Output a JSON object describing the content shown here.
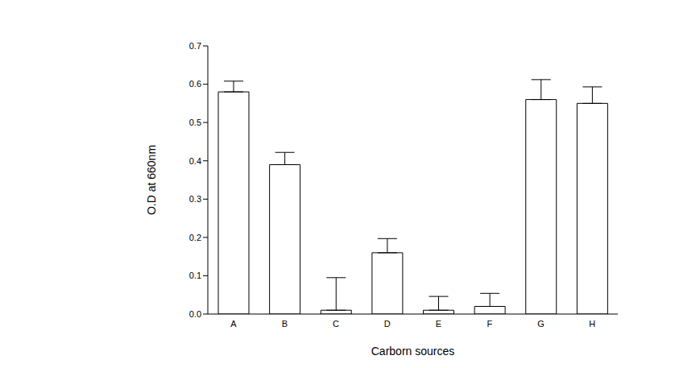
{
  "chart_data": {
    "type": "bar",
    "x_label": "Carborn sources",
    "y_label": "O.D at 660nm",
    "categories": [
      "A",
      "B",
      "C",
      "D",
      "E",
      "F",
      "G",
      "H"
    ],
    "values": [
      0.58,
      0.39,
      0.01,
      0.16,
      0.01,
      0.02,
      0.56,
      0.55
    ],
    "errors": [
      0.028,
      0.032,
      0.085,
      0.037,
      0.036,
      0.034,
      0.052,
      0.043
    ],
    "color": "#ffffff",
    "ylim": [
      0,
      0.7
    ],
    "yticks": [
      {
        "value": 0,
        "label": "0.0"
      },
      0.1,
      0.2,
      0.3,
      0.4,
      0.5,
      0.6,
      0.7
    ],
    "grid": false
  }
}
